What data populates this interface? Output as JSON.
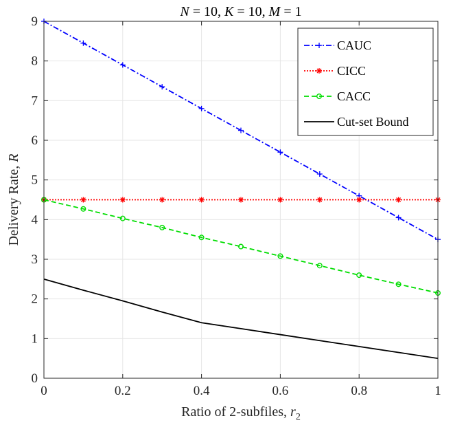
{
  "chart_data": {
    "type": "line",
    "title": {
      "parts": [
        {
          "text": "N",
          "italic": true
        },
        {
          "text": " = 10, ",
          "italic": false
        },
        {
          "text": "K",
          "italic": true
        },
        {
          "text": " = 10, ",
          "italic": false
        },
        {
          "text": "M",
          "italic": true
        },
        {
          "text": " = 1",
          "italic": false
        }
      ]
    },
    "xlabel": {
      "main": "Ratio of 2-subfiles, ",
      "var": "r",
      "sub": "2"
    },
    "ylabel": {
      "main": "Delivery Rate, ",
      "var": "R"
    },
    "xlim": [
      0,
      1
    ],
    "ylim": [
      0,
      9
    ],
    "xticks": [
      0,
      0.2,
      0.4,
      0.6,
      0.8,
      1
    ],
    "xtick_labels": [
      "0",
      "0.2",
      "0.4",
      "0.6",
      "0.8",
      "1"
    ],
    "yticks": [
      0,
      1,
      2,
      3,
      4,
      5,
      6,
      7,
      8,
      9
    ],
    "ytick_labels": [
      "0",
      "1",
      "2",
      "3",
      "4",
      "5",
      "6",
      "7",
      "8",
      "9"
    ],
    "grid": true,
    "legend_position": "top-right",
    "series": [
      {
        "name": "CAUC",
        "color": "#0000ff",
        "line_style": "dash-dot",
        "marker": "plus",
        "x": [
          0,
          0.1,
          0.2,
          0.3,
          0.4,
          0.5,
          0.6,
          0.7,
          0.8,
          0.9,
          1
        ],
        "y": [
          9.0,
          8.45,
          7.9,
          7.35,
          6.8,
          6.25,
          5.7,
          5.15,
          4.6,
          4.05,
          3.5
        ]
      },
      {
        "name": "CICC",
        "color": "#ff0000",
        "line_style": "dotted",
        "marker": "asterisk",
        "x": [
          0,
          0.1,
          0.2,
          0.3,
          0.4,
          0.5,
          0.6,
          0.7,
          0.8,
          0.9,
          1
        ],
        "y": [
          4.5,
          4.5,
          4.5,
          4.5,
          4.5,
          4.5,
          4.5,
          4.5,
          4.5,
          4.5,
          4.5
        ]
      },
      {
        "name": "CACC",
        "color": "#00dd00",
        "line_style": "dashed",
        "marker": "circle",
        "x": [
          0,
          0.1,
          0.2,
          0.3,
          0.4,
          0.5,
          0.6,
          0.7,
          0.8,
          0.9,
          1
        ],
        "y": [
          4.5,
          4.27,
          4.03,
          3.8,
          3.55,
          3.32,
          3.08,
          2.84,
          2.6,
          2.37,
          2.15
        ]
      },
      {
        "name": "Cut-set Bound",
        "color": "#000000",
        "line_style": "solid",
        "marker": "none",
        "x": [
          0,
          0.1,
          0.2,
          0.3,
          0.4,
          0.5,
          0.6,
          0.7,
          0.8,
          0.9,
          1
        ],
        "y": [
          2.5,
          2.22,
          1.95,
          1.67,
          1.4,
          1.25,
          1.1,
          0.95,
          0.8,
          0.65,
          0.5
        ]
      }
    ]
  }
}
